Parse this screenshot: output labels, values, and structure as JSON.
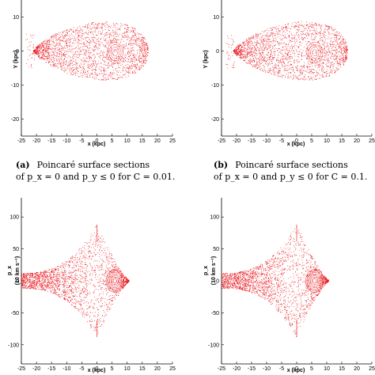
{
  "chart_data": [
    {
      "type": "scatter",
      "panel": "a",
      "caption_tag": "(a)",
      "caption_line1": "Poincaré surface sections",
      "caption_line2": "of p_x = 0 and p_y ≤ 0 for C = 0.01.",
      "xlabel": "x (kpc)",
      "ylabel": "Y (kpc)",
      "xlim": [
        -25,
        25
      ],
      "ylim": [
        -25,
        15
      ],
      "xticks": [
        -25,
        -20,
        -15,
        -10,
        -5,
        0,
        5,
        10,
        15,
        20,
        25
      ],
      "yticks": [
        -20,
        -10,
        0,
        10
      ],
      "color": "#e8141b",
      "cloud": {
        "shape": "drop",
        "x_left": -21,
        "x_right": 17,
        "y_half": 10.5,
        "island": [
          6,
          -0.5
        ]
      }
    },
    {
      "type": "scatter",
      "panel": "b",
      "caption_tag": "(b)",
      "caption_line1": "Poincaré surface sections",
      "caption_line2": "of p_x = 0 and p_y ≤ 0 for C = 0.1.",
      "xlabel": "x (kpc)",
      "ylabel": "Y (kpc)",
      "xlim": [
        -25,
        25
      ],
      "ylim": [
        -25,
        15
      ],
      "xticks": [
        -25,
        -20,
        -15,
        -10,
        -5,
        0,
        5,
        10,
        15,
        20,
        25
      ],
      "yticks": [
        -20,
        -10,
        0,
        10
      ],
      "color": "#e8141b",
      "cloud": {
        "shape": "drop",
        "x_left": -21,
        "x_right": 17,
        "y_half": 10.5,
        "island": [
          6,
          -0.5
        ]
      }
    },
    {
      "type": "scatter",
      "panel": "c",
      "xlabel": "x (kpc)",
      "ylabel_line1": "p_x",
      "ylabel_line2": "(10 km s⁻¹)",
      "xlim": [
        -25,
        25
      ],
      "ylim": [
        -130,
        130
      ],
      "xticks": [
        -25,
        -20,
        -15,
        -10,
        -5,
        0,
        5,
        10,
        15,
        20,
        25
      ],
      "yticks": [
        -100,
        -50,
        0,
        50,
        100
      ],
      "color": "#e8141b",
      "cloud": {
        "shape": "lens",
        "x_left": -25,
        "x_right": 11,
        "peak": 88,
        "island": [
          6,
          0
        ]
      }
    },
    {
      "type": "scatter",
      "panel": "d",
      "xlabel": "x (kpc)",
      "ylabel_line1": "p_x",
      "ylabel_line2": "(10 km s⁻¹)",
      "xlim": [
        -25,
        25
      ],
      "ylim": [
        -130,
        130
      ],
      "xticks": [
        -25,
        -20,
        -15,
        -10,
        -5,
        0,
        5,
        10,
        15,
        20,
        25
      ],
      "yticks": [
        -100,
        -50,
        0,
        50,
        100
      ],
      "color": "#e8141b",
      "cloud": {
        "shape": "lens",
        "x_left": -25,
        "x_right": 11,
        "peak": 88,
        "island": [
          6,
          0
        ]
      }
    }
  ]
}
